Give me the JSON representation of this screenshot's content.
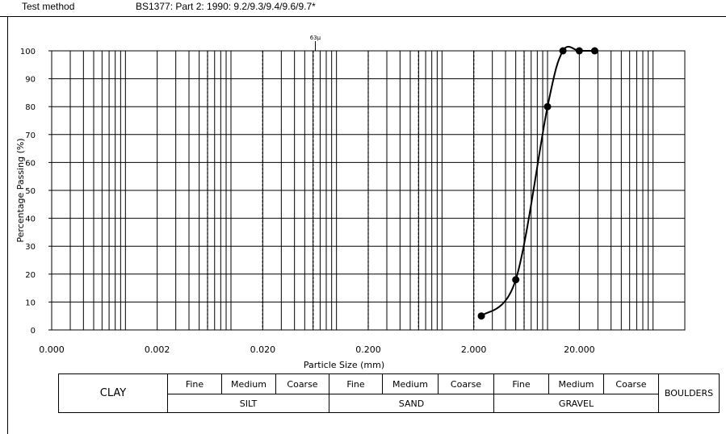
{
  "header": {
    "label": "Test method",
    "value": "BS1377: Part 2: 1990: 9.2/9.3/9.4/9.6/9.7*"
  },
  "chart_data": {
    "type": "scatter",
    "xscale": "log",
    "xlabel": "Particle Size (mm)",
    "ylabel": "Percentage Passing (%)",
    "xlim": [
      0.0002,
      200
    ],
    "ylim": [
      0,
      100
    ],
    "grid": true,
    "x_tick_values": [
      0.0002,
      0.002,
      0.02,
      0.2,
      2,
      20
    ],
    "x_tick_labels": [
      "0.000",
      "0.002",
      "0.020",
      "0.200",
      "2.000",
      "20.000"
    ],
    "y_ticks": [
      0,
      10,
      20,
      30,
      40,
      50,
      60,
      70,
      80,
      90,
      100
    ],
    "annotation": {
      "label": "63µ",
      "x": 0.063
    },
    "boundary_lines": [
      0.006,
      0.02,
      0.06,
      0.2,
      0.6,
      2,
      6
    ],
    "series": [
      {
        "x": [
          2.36,
          5,
          10,
          14,
          20,
          28
        ],
        "y": [
          5,
          18,
          80,
          100,
          100,
          100
        ]
      }
    ]
  },
  "classification": {
    "clay": "CLAY",
    "boulders": "BOULDERS",
    "silt": "SILT",
    "sand": "SAND",
    "gravel": "GRAVEL",
    "fine": "Fine",
    "medium": "Medium",
    "coarse": "Coarse"
  }
}
